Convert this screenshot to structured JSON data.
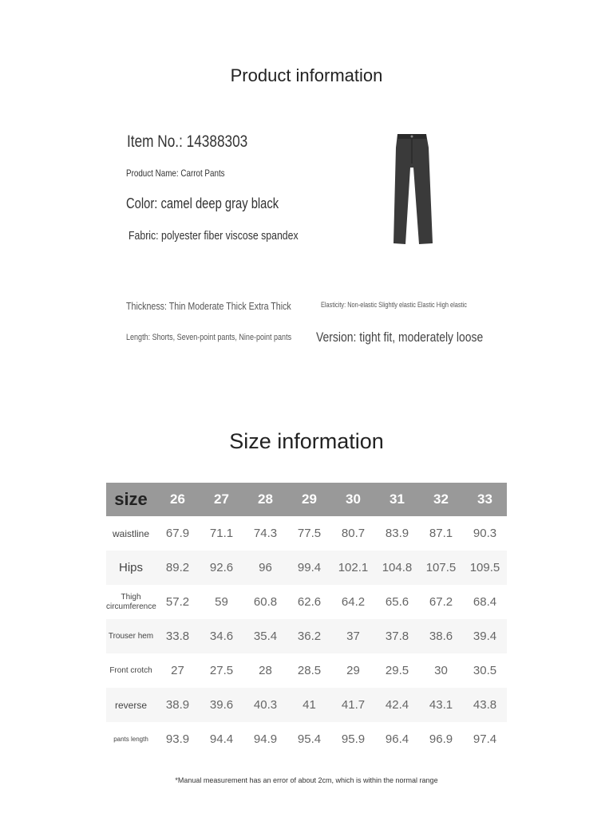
{
  "product": {
    "title": "Product information",
    "item_no": "Item No.: 14388303",
    "name": "Product Name: Carrot Pants",
    "color": "Color: camel deep gray black",
    "fabric": "Fabric: polyester fiber viscose spandex",
    "thickness": "Thickness: Thin Moderate Thick Extra Thick",
    "elasticity": "Elasticity: Non-elastic Slightly elastic Elastic High elastic",
    "length": "Length: Shorts, Seven-point pants, Nine-point pants",
    "version": "Version: tight fit, moderately loose"
  },
  "size": {
    "title": "Size information",
    "header": [
      "size",
      "26",
      "27",
      "28",
      "29",
      "30",
      "31",
      "32",
      "33"
    ],
    "rows": [
      {
        "label": "waistline",
        "values": [
          "67.9",
          "71.1",
          "74.3",
          "77.5",
          "80.7",
          "83.9",
          "87.1",
          "90.3"
        ]
      },
      {
        "label": "Hips",
        "values": [
          "89.2",
          "92.6",
          "96",
          "99.4",
          "102.1",
          "104.8",
          "107.5",
          "109.5"
        ]
      },
      {
        "label": "Thigh circumference",
        "values": [
          "57.2",
          "59",
          "60.8",
          "62.6",
          "64.2",
          "65.6",
          "67.2",
          "68.4"
        ]
      },
      {
        "label": "Trouser hem",
        "values": [
          "33.8",
          "34.6",
          "35.4",
          "36.2",
          "37",
          "37.8",
          "38.6",
          "39.4"
        ]
      },
      {
        "label": "Front crotch",
        "values": [
          "27",
          "27.5",
          "28",
          "28.5",
          "29",
          "29.5",
          "30",
          "30.5"
        ]
      },
      {
        "label": "reverse",
        "values": [
          "38.9",
          "39.6",
          "40.3",
          "41",
          "41.7",
          "42.4",
          "43.1",
          "43.8"
        ]
      },
      {
        "label": "pants length",
        "values": [
          "93.9",
          "94.4",
          "94.9",
          "95.4",
          "95.9",
          "96.4",
          "96.9",
          "97.4"
        ]
      }
    ],
    "note": "*Manual measurement has an error of about 2cm, which is within the normal range"
  },
  "colors": {
    "header_bg": "#999999",
    "alt_row": "#f6f6f6"
  }
}
